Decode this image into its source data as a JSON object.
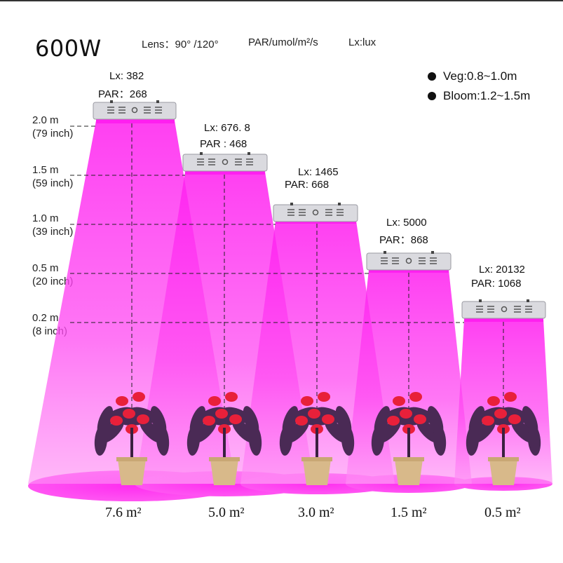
{
  "title": "600W",
  "header": {
    "lens": "Lens：90° /120°",
    "par_unit": "PAR/umol/m²/s",
    "lx_unit": "Lx:lux"
  },
  "legend": {
    "veg": "Veg:0.8~1.0m",
    "bloom": "Bloom:1.2~1.5m"
  },
  "heights": [
    {
      "m": "2.0 m",
      "inch": "(79 inch)"
    },
    {
      "m": "1.5 m",
      "inch": "(59 inch)"
    },
    {
      "m": "1.0 m",
      "inch": "(39 inch)"
    },
    {
      "m": "0.5 m",
      "inch": "(20 inch)"
    },
    {
      "m": "0.2 m",
      "inch": "(8 inch)"
    }
  ],
  "lamps": [
    {
      "lx": "Lx:  382",
      "par": "PAR：268",
      "area": "7.6 m²"
    },
    {
      "lx": "Lx:  676. 8",
      "par": "PAR : 468",
      "area": "5.0 m²"
    },
    {
      "lx": "Lx:  1465",
      "par": "PAR:  668",
      "area": "3.0 m²"
    },
    {
      "lx": "Lx: 5000",
      "par": "PAR：868",
      "area": "1.5 m²"
    },
    {
      "lx": "Lx:  20132",
      "par": "PAR:  1068",
      "area": "0.5 m²"
    }
  ],
  "colors": {
    "light": "#ff2df0",
    "light_edge": "#f6b6f4",
    "lamp_body": "#d8d8dc",
    "pot": "#d8b98a",
    "flower": "#e8203a",
    "leaf": "#4a2a55"
  }
}
